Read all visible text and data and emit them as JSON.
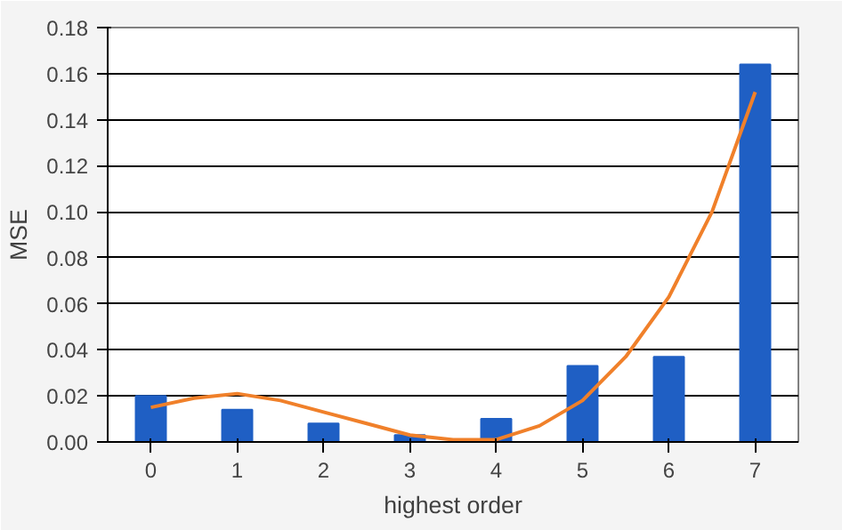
{
  "chart_data": {
    "type": "bar",
    "xlabel": "highest order",
    "ylabel": "MSE",
    "x": [
      0,
      1,
      2,
      3,
      4,
      5,
      6,
      7
    ],
    "series": [
      {
        "color": "#1f5fc4",
        "values": [
          0.02,
          0.014,
          0.008,
          0.003,
          0.01,
          0.033,
          0.037,
          0.164
        ]
      },
      {
        "type": "line",
        "color": "#f0802a",
        "x": [
          0,
          0.5,
          1,
          1.5,
          2,
          2.5,
          3,
          3.5,
          4,
          4.5,
          5,
          5.5,
          6,
          6.5,
          7
        ],
        "values": [
          0.015,
          0.019,
          0.021,
          0.018,
          0.013,
          0.008,
          0.003,
          0.001,
          0.001,
          0.007,
          0.018,
          0.037,
          0.063,
          0.1,
          0.152
        ]
      }
    ],
    "xlim": [
      -0.5,
      7.5
    ],
    "xticks": [
      0,
      1,
      2,
      3,
      4,
      5,
      6,
      7
    ],
    "ylim": [
      0,
      0.18
    ],
    "yticks": [
      {
        "value": 0,
        "label": "0.00"
      },
      {
        "value": 0.02,
        "label": "0.02"
      },
      {
        "value": 0.04,
        "label": "0.04"
      },
      {
        "value": 0.06,
        "label": "0.06"
      },
      {
        "value": 0.08,
        "label": "0.08"
      },
      {
        "value": 0.1,
        "label": "0.10"
      },
      {
        "value": 0.12,
        "label": "0.12"
      },
      {
        "value": 0.14,
        "label": "0.14"
      },
      {
        "value": 0.16,
        "label": "0.16"
      },
      {
        "value": 0.18,
        "label": "0.18"
      }
    ],
    "grid": "y"
  }
}
